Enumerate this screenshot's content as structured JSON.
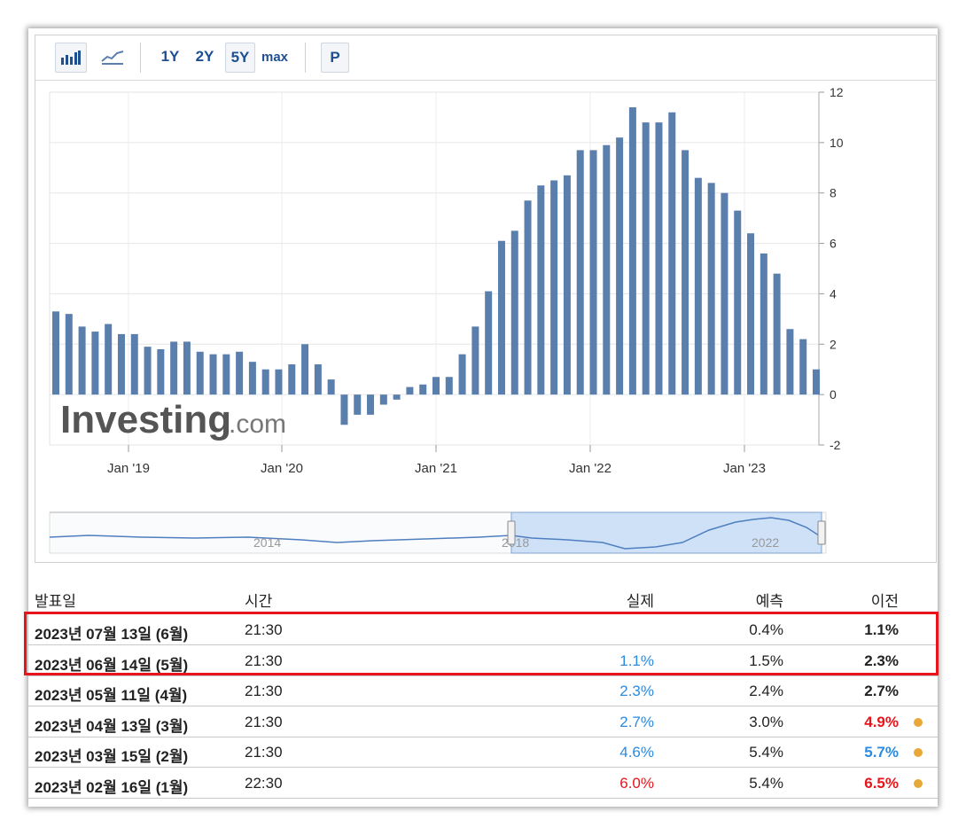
{
  "toolbar": {
    "bar_icon": "bar-chart-icon",
    "line_icon": "line-chart-icon",
    "ranges": [
      "1Y",
      "2Y",
      "5Y",
      "max"
    ],
    "active_range": "5Y",
    "p_label": "P"
  },
  "colors": {
    "bar": "#5b7fad",
    "positive": "#2a8be0",
    "negative": "#e8141b",
    "highlight": "#e8141b",
    "dot": "#e8a838"
  },
  "watermark": {
    "brand": "Investing",
    "suffix": ".com"
  },
  "chart_data": {
    "type": "bar",
    "x_tick_labels": [
      "Jan '19",
      "Jan '20",
      "Jan '21",
      "Jan '22",
      "Jan '23"
    ],
    "y_ticks": [
      -2,
      0,
      2,
      4,
      6,
      8,
      10,
      12
    ],
    "ylim": [
      -2,
      12
    ],
    "grid": true,
    "y_axis_side": "right",
    "values": [
      3.3,
      3.2,
      2.7,
      2.5,
      2.8,
      2.4,
      2.4,
      1.9,
      1.8,
      2.1,
      2.1,
      1.7,
      1.6,
      1.6,
      1.7,
      1.3,
      1.0,
      1.0,
      1.2,
      2.0,
      1.2,
      0.6,
      -1.2,
      -0.8,
      -0.8,
      -0.4,
      -0.2,
      0.3,
      0.4,
      0.7,
      0.7,
      1.6,
      2.7,
      4.1,
      6.1,
      6.5,
      7.7,
      8.3,
      8.5,
      8.7,
      9.7,
      9.7,
      9.9,
      10.2,
      11.4,
      10.8,
      10.8,
      11.2,
      9.7,
      8.6,
      8.4,
      8.0,
      7.3,
      6.4,
      5.6,
      4.8,
      2.6,
      2.2,
      1.0
    ],
    "navigator": {
      "year_labels": [
        "2014",
        "2018",
        "2022"
      ]
    }
  },
  "table": {
    "headers": {
      "date": "발표일",
      "time": "시간",
      "actual": "실제",
      "forecast": "예측",
      "previous": "이전"
    },
    "rows": [
      {
        "date": "2023년 07월 13일 (6월)",
        "time": "21:30",
        "actual": "",
        "actual_color": "#222222",
        "forecast": "0.4%",
        "previous": "1.1%",
        "previous_color": "#222222",
        "dot": false
      },
      {
        "date": "2023년 06월 14일 (5월)",
        "time": "21:30",
        "actual": "1.1%",
        "actual_color": "#2a8be0",
        "forecast": "1.5%",
        "previous": "2.3%",
        "previous_color": "#222222",
        "dot": false
      },
      {
        "date": "2023년 05월 11일 (4월)",
        "time": "21:30",
        "actual": "2.3%",
        "actual_color": "#2a8be0",
        "forecast": "2.4%",
        "previous": "2.7%",
        "previous_color": "#222222",
        "dot": false
      },
      {
        "date": "2023년 04월 13일 (3월)",
        "time": "21:30",
        "actual": "2.7%",
        "actual_color": "#2a8be0",
        "forecast": "3.0%",
        "previous": "4.9%",
        "previous_color": "#e8141b",
        "dot": true
      },
      {
        "date": "2023년 03월 15일 (2월)",
        "time": "21:30",
        "actual": "4.6%",
        "actual_color": "#2a8be0",
        "forecast": "5.4%",
        "previous": "5.7%",
        "previous_color": "#2a8be0",
        "dot": true
      },
      {
        "date": "2023년 02월 16일 (1월)",
        "time": "22:30",
        "actual": "6.0%",
        "actual_color": "#e8141b",
        "forecast": "5.4%",
        "previous": "6.5%",
        "previous_color": "#e8141b",
        "dot": true
      }
    ]
  }
}
